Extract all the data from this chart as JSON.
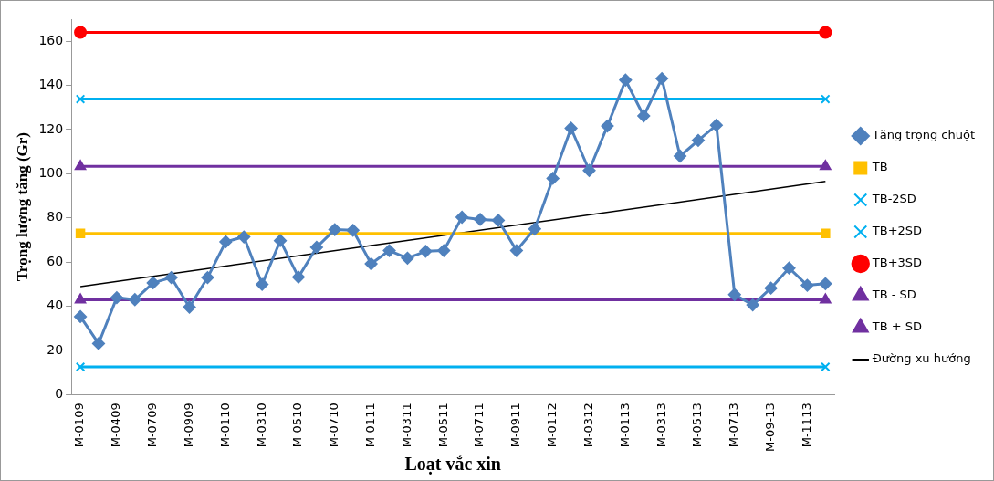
{
  "chart_data": {
    "type": "line",
    "xlabel": "Loạt vắc xin",
    "ylabel": "Trọng lượng tăng (Gr)",
    "categories": [
      "M-0109",
      null,
      "M-0409",
      null,
      "M-0709",
      null,
      "M-0909",
      null,
      "M-0110",
      null,
      "M-0310",
      null,
      "M-0510",
      null,
      "M-0710",
      null,
      "M-0111",
      null,
      "M-0311",
      null,
      "M-0511",
      null,
      "M-0711",
      null,
      "M-0911",
      null,
      "M-0112",
      null,
      "M-0312",
      null,
      "M-0113",
      null,
      "M-0313",
      null,
      "M-0513",
      null,
      "M-0713",
      null,
      "M-09-13",
      null,
      "M-1113",
      null
    ],
    "ylim": [
      0,
      170
    ],
    "yticks": [
      0,
      20,
      40,
      60,
      80,
      100,
      120,
      140,
      160
    ],
    "grid": false,
    "legend": "right",
    "series": [
      {
        "name": "Tăng trọng chuột",
        "color": "#4f81bd",
        "marker": "diamond",
        "values": [
          35.3,
          23.1,
          43.9,
          43,
          50.6,
          53,
          39.6,
          53,
          69.2,
          71.4,
          49.9,
          69.7,
          53.2,
          66.7,
          74.7,
          74.4,
          59.2,
          65.2,
          61.8,
          64.9,
          65.2,
          80.3,
          79.3,
          78.9,
          65.2,
          75,
          97.9,
          120.6,
          101.5,
          121.6,
          142.4,
          126.2,
          143.1,
          108,
          115.1,
          122,
          45.3,
          40.6,
          48.2,
          57.3,
          49.5,
          50.2
        ]
      },
      {
        "name": "TB",
        "color": "#ffc000",
        "marker": "square",
        "values": [
          73,
          null,
          null,
          null,
          null,
          null,
          null,
          null,
          null,
          null,
          null,
          null,
          null,
          null,
          null,
          null,
          null,
          null,
          null,
          null,
          null,
          null,
          null,
          null,
          null,
          null,
          null,
          null,
          null,
          null,
          null,
          null,
          null,
          null,
          null,
          null,
          null,
          null,
          null,
          null,
          null,
          73
        ]
      },
      {
        "name": "TB-2SD",
        "color": "#00b0f0",
        "marker": "cross",
        "values": [
          12.5,
          null,
          null,
          null,
          null,
          null,
          null,
          null,
          null,
          null,
          null,
          null,
          null,
          null,
          null,
          null,
          null,
          null,
          null,
          null,
          null,
          null,
          null,
          null,
          null,
          null,
          null,
          null,
          null,
          null,
          null,
          null,
          null,
          null,
          null,
          null,
          null,
          null,
          null,
          null,
          null,
          12.5
        ]
      },
      {
        "name": "TB+2SD",
        "color": "#00b0f0",
        "marker": "cross",
        "values": [
          133.8,
          null,
          null,
          null,
          null,
          null,
          null,
          null,
          null,
          null,
          null,
          null,
          null,
          null,
          null,
          null,
          null,
          null,
          null,
          null,
          null,
          null,
          null,
          null,
          null,
          null,
          null,
          null,
          null,
          null,
          null,
          null,
          null,
          null,
          null,
          null,
          null,
          null,
          null,
          null,
          null,
          133.8
        ]
      },
      {
        "name": "TB+3SD",
        "color": "#ff0000",
        "marker": "circle",
        "values": [
          164,
          null,
          null,
          null,
          null,
          null,
          null,
          null,
          null,
          null,
          null,
          null,
          null,
          null,
          null,
          null,
          null,
          null,
          null,
          null,
          null,
          null,
          null,
          null,
          null,
          null,
          null,
          null,
          null,
          null,
          null,
          null,
          null,
          null,
          null,
          null,
          null,
          null,
          null,
          null,
          null,
          164
        ]
      },
      {
        "name": "TB - SD",
        "color": "#7030a0",
        "marker": "triangle",
        "values": [
          42.9,
          null,
          null,
          null,
          null,
          null,
          null,
          null,
          null,
          null,
          null,
          null,
          null,
          null,
          null,
          null,
          null,
          null,
          null,
          null,
          null,
          null,
          null,
          null,
          null,
          null,
          null,
          null,
          null,
          null,
          null,
          null,
          null,
          null,
          null,
          null,
          null,
          null,
          null,
          null,
          null,
          42.9
        ]
      },
      {
        "name": "TB + SD",
        "color": "#7030a0",
        "marker": "triangle",
        "values": [
          103.4,
          null,
          null,
          null,
          null,
          null,
          null,
          null,
          null,
          null,
          null,
          null,
          null,
          null,
          null,
          null,
          null,
          null,
          null,
          null,
          null,
          null,
          null,
          null,
          null,
          null,
          null,
          null,
          null,
          null,
          null,
          null,
          null,
          null,
          null,
          null,
          null,
          null,
          null,
          null,
          null,
          103.4
        ]
      },
      {
        "name": "Đường xu hướng",
        "color": "#000000",
        "marker": "none",
        "values": [
          48.9,
          null,
          null,
          null,
          null,
          null,
          null,
          null,
          null,
          null,
          null,
          null,
          null,
          null,
          null,
          null,
          null,
          null,
          null,
          null,
          null,
          null,
          null,
          null,
          null,
          null,
          null,
          null,
          null,
          null,
          null,
          null,
          null,
          null,
          null,
          null,
          null,
          null,
          null,
          null,
          null,
          96.5
        ]
      }
    ]
  }
}
